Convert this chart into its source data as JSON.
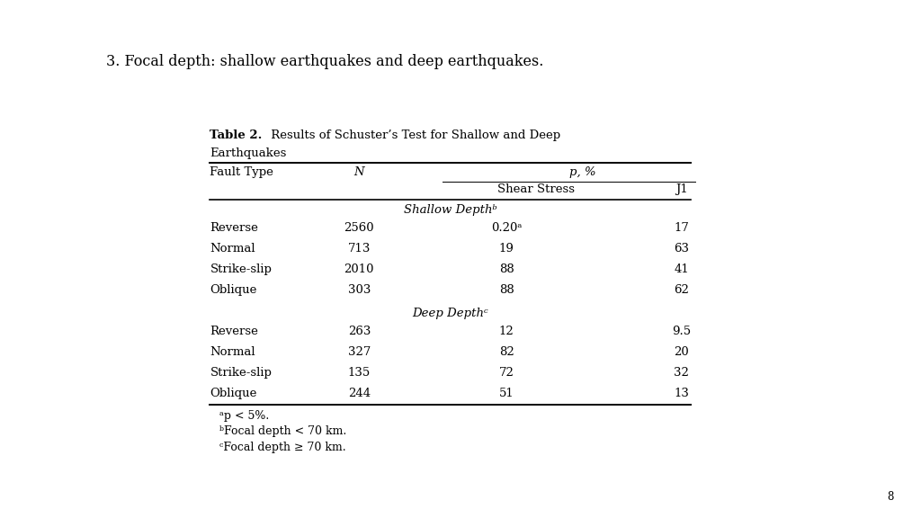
{
  "slide_title": "3. Focal depth: shallow earthquakes and deep earthquakes.",
  "table_title_bold": "Table 2.",
  "table_title_rest": " Results of Schuster’s Test for Shallow and Deep",
  "table_title_line2": "Earthquakes",
  "shallow_label": "Shallow Depthᵇ",
  "deep_label": "Deep Depthᶜ",
  "shallow_rows": [
    [
      "Reverse",
      "2560",
      "0.20ᵃ",
      "17"
    ],
    [
      "Normal",
      "713",
      "19",
      "63"
    ],
    [
      "Strike-slip",
      "2010",
      "88",
      "41"
    ],
    [
      "Oblique",
      "303",
      "88",
      "62"
    ]
  ],
  "deep_rows": [
    [
      "Reverse",
      "263",
      "12",
      "9.5"
    ],
    [
      "Normal",
      "327",
      "82",
      "20"
    ],
    [
      "Strike-slip",
      "135",
      "72",
      "32"
    ],
    [
      "Oblique",
      "244",
      "51",
      "13"
    ]
  ],
  "footnotes": [
    "ᵃp < 5%.",
    "ᵇFocal depth < 70 km.",
    "ᶜFocal depth ≥ 70 km."
  ],
  "page_number": "8",
  "bg_color": "#ffffff",
  "text_color": "#000000",
  "slide_title_fontsize": 11.5,
  "table_fontsize": 9.5
}
